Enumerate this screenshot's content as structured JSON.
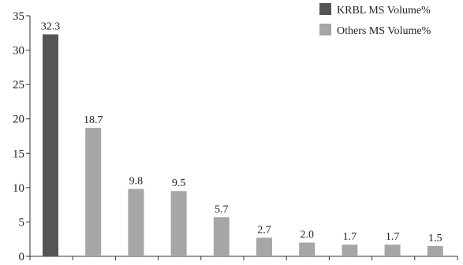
{
  "chart_data": {
    "type": "bar",
    "title": "",
    "xlabel": "",
    "ylabel": "",
    "categories": [
      "",
      "",
      "",
      "",
      "",
      "",
      "",
      "",
      "",
      ""
    ],
    "values": [
      32.3,
      18.7,
      9.8,
      9.5,
      5.7,
      2.7,
      2.0,
      1.7,
      1.7,
      1.5
    ],
    "value_labels": [
      "32.3",
      "18.7",
      "9.8",
      "9.5",
      "5.7",
      "2.7",
      "2.0",
      "1.7",
      "1.7",
      "1.5"
    ],
    "bar_series": [
      0,
      1,
      1,
      1,
      1,
      1,
      1,
      1,
      1,
      1
    ],
    "series": [
      {
        "name": "KRBL MS Volume%",
        "color": "#555555"
      },
      {
        "name": "Others MS Volume%",
        "color": "#a6a6a6"
      }
    ],
    "ylim": [
      0,
      35
    ],
    "yticks": [
      0,
      5,
      10,
      15,
      20,
      25,
      30,
      35
    ],
    "ytick_labels": [
      "0",
      "5",
      "10",
      "15",
      "20",
      "25",
      "30",
      "35"
    ],
    "grid": false,
    "legend_position": "top-right"
  }
}
